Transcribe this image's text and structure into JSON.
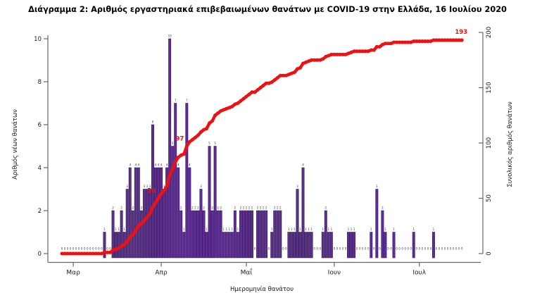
{
  "title": "Διάγραμμα 2: Αριθμός εργαστηριακά επιβεβαιωμένων θανάτων με COVID-19 στην Ελλάδα, 16 Ιουλίου 2020",
  "chart_data": {
    "type": "bar",
    "title": "Διάγραμμα 2: Αριθμός εργαστηριακά επιβεβαιωμένων θανάτων με COVID-19 στην Ελλάδα, 16 Ιουλίου 2020",
    "xlabel": "Ημερομηνία θανάτου",
    "ylabel_left": "Αριθμός νέων θανάτων",
    "ylabel_right": "Συνολικός αριθμός θανάτων",
    "ylim_left": [
      0,
      10
    ],
    "ylim_right": [
      0,
      200
    ],
    "yticks_left": [
      0,
      2,
      4,
      6,
      8,
      10
    ],
    "yticks_right": [
      0,
      50,
      100,
      150,
      200
    ],
    "grid": false,
    "x_ticks": [
      {
        "label": "Μαρ",
        "day_index": 4
      },
      {
        "label": "Απρ",
        "day_index": 35
      },
      {
        "label": "Μαΐ",
        "day_index": 65
      },
      {
        "label": "Ιουν",
        "day_index": 96
      },
      {
        "label": "Ιουλ",
        "day_index": 126
      }
    ],
    "daily_new_deaths": [
      0,
      0,
      0,
      0,
      0,
      0,
      0,
      0,
      0,
      0,
      0,
      0,
      0,
      0,
      0,
      1,
      0,
      0,
      2,
      1,
      1,
      2,
      1,
      3,
      4,
      2,
      4,
      4,
      2,
      3,
      3,
      3,
      6,
      4,
      4,
      4,
      3,
      4,
      10,
      5,
      7,
      4,
      2,
      1,
      7,
      4,
      2,
      2,
      2,
      3,
      2,
      1,
      5,
      2,
      5,
      2,
      2,
      1,
      1,
      1,
      1,
      2,
      1,
      2,
      2,
      2,
      2,
      2,
      0,
      2,
      2,
      2,
      2,
      0,
      1,
      2,
      2,
      2,
      0,
      0,
      1,
      1,
      1,
      3,
      1,
      4,
      1,
      1,
      1,
      0,
      0,
      0,
      1,
      2,
      1,
      1,
      0,
      0,
      0,
      0,
      0,
      1,
      1,
      1,
      0,
      0,
      0,
      0,
      0,
      1,
      0,
      3,
      0,
      2,
      1,
      0,
      0,
      1,
      0,
      0,
      0,
      0,
      0,
      0,
      1,
      0,
      0,
      0,
      0,
      0,
      0,
      1,
      0,
      0,
      0,
      0,
      0,
      0,
      0,
      0,
      0,
      0
    ],
    "cumulative_total": 193,
    "line_annotations": [
      {
        "label": "50",
        "day_index": 34
      },
      {
        "label": "97",
        "day_index": 44
      },
      {
        "label": "193",
        "day_index": 141
      }
    ],
    "colors": {
      "bar": "#5c2e91",
      "bar_border": "#2a1047",
      "line": "#ee1111",
      "annotation": "#ee1111"
    }
  }
}
